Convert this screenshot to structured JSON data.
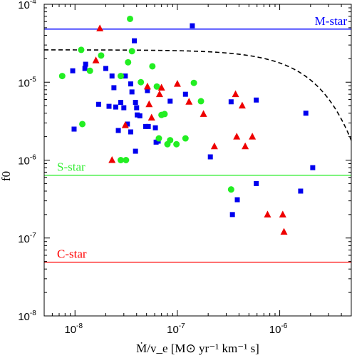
{
  "chart_data": {
    "type": "scatter",
    "title": "",
    "xlabel": "Ṁ/v_e [M⊙ yr⁻¹ km⁻¹ s]",
    "ylabel": "f0",
    "xscale": "log",
    "yscale": "log",
    "xlim": [
      5e-09,
      5e-06
    ],
    "ylim": [
      1e-08,
      0.0001
    ],
    "grid": false,
    "legend": "none",
    "x_ticks": [
      {
        "value": 1e-08,
        "base": "10",
        "exp": "-8"
      },
      {
        "value": 1e-07,
        "base": "10",
        "exp": "-7"
      },
      {
        "value": 1e-06,
        "base": "10",
        "exp": "-6"
      }
    ],
    "y_ticks": [
      {
        "value": 1e-08,
        "base": "10",
        "exp": "-8"
      },
      {
        "value": 1e-07,
        "base": "10",
        "exp": "-7"
      },
      {
        "value": 1e-06,
        "base": "10",
        "exp": "-6"
      },
      {
        "value": 1e-05,
        "base": "10",
        "exp": "-5"
      },
      {
        "value": 0.0001,
        "base": "10",
        "exp": "-4"
      }
    ],
    "hlines": [
      {
        "label": "M-star",
        "y": 4.8e-05,
        "color": "#0000ff"
      },
      {
        "label": "S-star",
        "y": 6.4e-07,
        "color": "#33ee33"
      },
      {
        "label": "C-star",
        "y": 4.9e-08,
        "color": "#ff0000"
      }
    ],
    "fit_curve": {
      "style": "dashed",
      "color": "#000000",
      "f_max": 2.6e-05,
      "x_scale": 2.2e-06
    },
    "series": [
      {
        "marker": "square",
        "color": "#0000ee",
        "points": [
          [
            9.5e-09,
            1.4e-05
          ],
          [
            9.8e-09,
            2.5e-06
          ],
          [
            1.25e-08,
            1.5e-05
          ],
          [
            1.27e-08,
            1.7e-05
          ],
          [
            1.7e-08,
            5.2e-06
          ],
          [
            2e-08,
            1.5e-05
          ],
          [
            2.15e-08,
            4.9e-06
          ],
          [
            2.3e-08,
            1.2e-05
          ],
          [
            2.4e-08,
            8.5e-06
          ],
          [
            2.5e-08,
            4.8e-06
          ],
          [
            2.65e-08,
            2.4e-06
          ],
          [
            2.8e-08,
            5.5e-06
          ],
          [
            3e-08,
            4.7e-06
          ],
          [
            3.1e-08,
            1.2e-05
          ],
          [
            3.25e-08,
            2.9e-06
          ],
          [
            3.5e-08,
            9.5e-06
          ],
          [
            3.5e-08,
            2.3e-06
          ],
          [
            3.6e-08,
            7.5e-06
          ],
          [
            3.8e-08,
            3.4e-05
          ],
          [
            3.9e-08,
            5.5e-06
          ],
          [
            3.9e-08,
            1.3e-06
          ],
          [
            4e-08,
            4.7e-06
          ],
          [
            4.05e-08,
            3.8e-06
          ],
          [
            4.3e-08,
            3.7e-06
          ],
          [
            4.9e-08,
            2.7e-06
          ],
          [
            5.1e-08,
            7.8e-06
          ],
          [
            5.2e-08,
            2.7e-06
          ],
          [
            6.1e-08,
            2.6e-06
          ],
          [
            6.2e-08,
            1.7e-06
          ],
          [
            6.5e-08,
            1.75e-06
          ],
          [
            8.5e-08,
            5.7e-06
          ],
          [
            1.2e-07,
            7e-06
          ],
          [
            1.4e-07,
            5.3e-05
          ],
          [
            2.1e-07,
            1.1e-06
          ],
          [
            3.35e-07,
            5.6e-06
          ],
          [
            3.45e-07,
            2e-07
          ],
          [
            3.85e-07,
            3.1e-07
          ],
          [
            5.9e-07,
            5e-07
          ],
          [
            5.9e-07,
            5.9e-06
          ],
          [
            1.6e-06,
            4e-07
          ],
          [
            1.8e-06,
            4e-06
          ],
          [
            2.1e-06,
            8e-07
          ]
        ]
      },
      {
        "marker": "circle",
        "color": "#22ee22",
        "points": [
          [
            7.5e-09,
            1.2e-05
          ],
          [
            1.15e-08,
            2.6e-05
          ],
          [
            1.18e-08,
            2.9e-06
          ],
          [
            1.4e-08,
            1.4e-05
          ],
          [
            1.8e-08,
            2.2e-05
          ],
          [
            2.8e-08,
            1.2e-05
          ],
          [
            2.8e-08,
            1e-06
          ],
          [
            3.15e-08,
            1e-06
          ],
          [
            3.3e-08,
            1.8e-05
          ],
          [
            3.45e-08,
            6.5e-05
          ],
          [
            3.6e-08,
            2.5e-05
          ],
          [
            4.4e-08,
            1e-05
          ],
          [
            5.7e-08,
            1.6e-05
          ],
          [
            6.3e-08,
            8.8e-06
          ],
          [
            6.6e-08,
            1.9e-06
          ],
          [
            7e-08,
            3.8e-06
          ],
          [
            7.5e-08,
            3.9e-06
          ],
          [
            8e-08,
            1.6e-06
          ],
          [
            8.5e-08,
            1.8e-06
          ],
          [
            9.8e-08,
            1.6e-06
          ],
          [
            1.2e-07,
            1.9e-06
          ],
          [
            1.45e-07,
            9.8e-06
          ],
          [
            1.7e-07,
            5.7e-06
          ],
          [
            3.35e-07,
            4.2e-07
          ]
        ]
      },
      {
        "marker": "triangle",
        "color": "#ee0000",
        "points": [
          [
            1.6e-08,
            1.9e-05
          ],
          [
            1.75e-08,
            4.9e-05
          ],
          [
            2.3e-08,
            1e-06
          ],
          [
            3.1e-08,
            2.8e-06
          ],
          [
            5.1e-08,
            8.8e-06
          ],
          [
            5.3e-08,
            5.2e-06
          ],
          [
            5.6e-08,
            3.5e-06
          ],
          [
            6.7e-08,
            7e-06
          ],
          [
            7e-08,
            8.5e-06
          ],
          [
            1e-07,
            9.5e-06
          ],
          [
            1.3e-07,
            5.6e-06
          ],
          [
            1.8e-07,
            3.9e-06
          ],
          [
            2.3e-07,
            1.5e-06
          ],
          [
            3.7e-07,
            7e-06
          ],
          [
            3.8e-07,
            2e-06
          ],
          [
            4.3e-07,
            5e-06
          ],
          [
            4.6e-07,
            1.5e-06
          ],
          [
            5.4e-07,
            2e-06
          ],
          [
            7.6e-07,
            2e-07
          ],
          [
            1.07e-06,
            2e-07
          ],
          [
            1.1e-06,
            1.2e-07
          ]
        ]
      }
    ]
  }
}
